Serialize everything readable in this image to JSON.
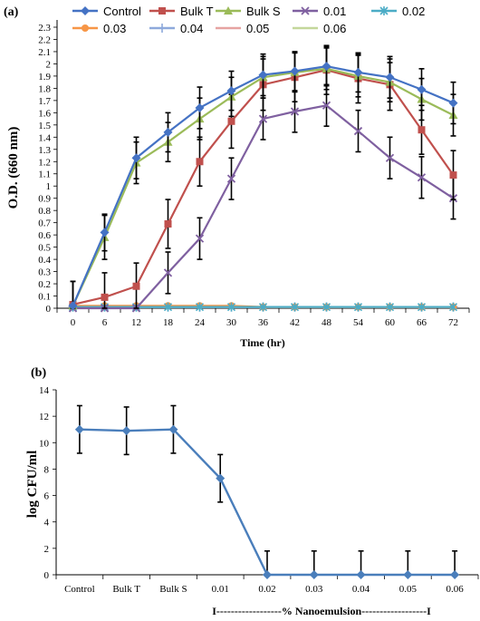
{
  "chart_data": [
    {
      "panel_label": "(a)",
      "type": "line",
      "xlabel": "Time (hr)",
      "ylabel": "O.D. (660 nm)",
      "x": [
        0,
        6,
        12,
        18,
        24,
        30,
        36,
        42,
        48,
        54,
        60,
        66,
        72
      ],
      "ylim": [
        0,
        2.3
      ],
      "ytick_step": 0.1,
      "legend_position": "top",
      "series": [
        {
          "name": "Control",
          "color": "#4472C4",
          "marker": "diamond",
          "values": [
            0.02,
            0.62,
            1.23,
            1.44,
            1.64,
            1.78,
            1.91,
            1.94,
            1.98,
            1.93,
            1.89,
            1.79,
            1.68
          ],
          "error": [
            0.2,
            0.15,
            0.17,
            0.16,
            0.17,
            0.16,
            0.17,
            0.16,
            0.16,
            0.16,
            0.17,
            0.17,
            0.17
          ]
        },
        {
          "name": "Bulk T",
          "color": "#C0504D",
          "marker": "square",
          "values": [
            0.03,
            0.09,
            0.18,
            0.69,
            1.2,
            1.53,
            1.83,
            1.89,
            1.95,
            1.88,
            1.83,
            1.46,
            1.09
          ],
          "error": [
            0.19,
            0.2,
            0.19,
            0.2,
            0.2,
            0.22,
            0.21,
            0.2,
            0.2,
            0.2,
            0.21,
            0.2,
            0.2
          ]
        },
        {
          "name": "Bulk S",
          "color": "#9BBB59",
          "marker": "triangle",
          "values": [
            0.02,
            0.58,
            1.19,
            1.36,
            1.55,
            1.73,
            1.89,
            1.93,
            1.96,
            1.9,
            1.85,
            1.71,
            1.58
          ],
          "error": [
            0.2,
            0.18,
            0.17,
            0.16,
            0.17,
            0.16,
            0.17,
            0.16,
            0.17,
            0.17,
            0.16,
            0.17,
            0.17
          ]
        },
        {
          "name": "0.01",
          "color": "#7F60A0",
          "marker": "x",
          "values": [
            0,
            0,
            0,
            0.29,
            0.57,
            1.06,
            1.55,
            1.61,
            1.66,
            1.45,
            1.23,
            1.07,
            0.9
          ],
          "error": [
            0,
            0,
            0,
            0.17,
            0.17,
            0.17,
            0.17,
            0.17,
            0.17,
            0.17,
            0.17,
            0.17,
            0.17
          ]
        },
        {
          "name": "0.02",
          "color": "#4BACC6",
          "marker": "star",
          "values": [
            0.01,
            0.01,
            0.01,
            0.01,
            0.01,
            0.01,
            0.01,
            0.01,
            0.01,
            0.01,
            0.01,
            0.01,
            0.01
          ]
        },
        {
          "name": "0.03",
          "color": "#F79646",
          "marker": "circle",
          "values": [
            0.02,
            0.02,
            0.02,
            0.02,
            0.02,
            0.02,
            0.01,
            0.01,
            0.01,
            0.01,
            0.01,
            0.01,
            0.01
          ]
        },
        {
          "name": "0.04",
          "color": "#8EA9DB",
          "marker": "plus",
          "values": [
            0.01,
            0.01,
            0.01,
            0.01,
            0.01,
            0.01,
            0.01,
            0.01,
            0.01,
            0.01,
            0.01,
            0.01,
            0.01
          ]
        },
        {
          "name": "0.05",
          "color": "#E6A3A1",
          "marker": "dash",
          "values": [
            0.01,
            0.01,
            0.01,
            0.01,
            0.01,
            0.01,
            0.01,
            0.01,
            0.01,
            0.01,
            0.01,
            0.01,
            0.01
          ]
        },
        {
          "name": "0.06",
          "color": "#C4D79B",
          "marker": "dash",
          "values": [
            0.01,
            0.01,
            0.01,
            0.01,
            0.01,
            0.01,
            0.01,
            0.01,
            0.01,
            0.01,
            0.01,
            0.01,
            0.01
          ]
        }
      ]
    },
    {
      "panel_label": "(b)",
      "type": "line",
      "xlabel": "",
      "ylabel": "log CFU/ml",
      "categories": [
        "Control",
        "Bulk T",
        "Bulk S",
        "0.01",
        "0.02",
        "0.03",
        "0.04",
        "0.05",
        "0.06"
      ],
      "ylim": [
        0,
        14
      ],
      "ytick_step": 2,
      "group_annotation": "I------------------% Nanoemulsion------------------I",
      "series": [
        {
          "name": "",
          "color": "#4A7EBB",
          "marker": "diamond",
          "values": [
            11.0,
            10.9,
            11.0,
            7.3,
            0,
            0,
            0,
            0,
            0
          ],
          "error": [
            1.8,
            1.8,
            1.8,
            1.8,
            1.8,
            1.8,
            1.8,
            1.8,
            1.8
          ]
        }
      ]
    }
  ]
}
